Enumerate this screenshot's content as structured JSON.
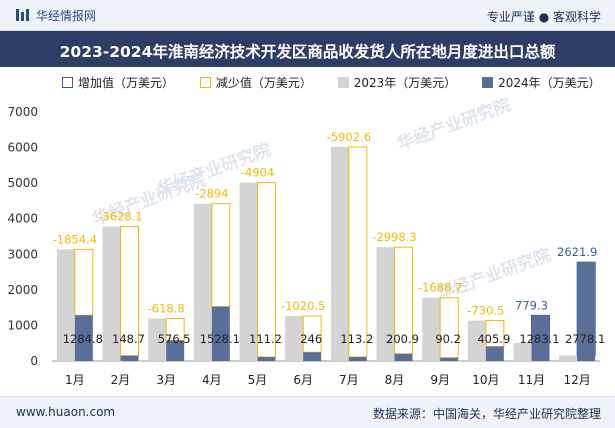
{
  "header": {
    "brand": "华经情报网",
    "slogan": "专业严谨 ● 客观科学"
  },
  "title": "2023-2024年淮南经济技术开发区商品收发货人所在地月度进出口总额",
  "legend": {
    "increase": "增加值（万美元）",
    "decrease": "减少值（万美元）",
    "y2023": "2023年（万美元）",
    "y2024": "2024年（万美元）"
  },
  "watermark": "华经产业研究院",
  "colors": {
    "bar2023": "#d4d4d4",
    "bar2024": "#5a6e9a",
    "increase": "#3a5a9c",
    "decrease": "#f5b800",
    "title_bg": "#2c3e66"
  },
  "footer": {
    "site": "www.huaon.com",
    "source": "数据来源：中国海关，华经产业研究院整理"
  },
  "chart_data": {
    "type": "bar",
    "categories": [
      "1月",
      "2月",
      "3月",
      "4月",
      "5月",
      "6月",
      "7月",
      "8月",
      "9月",
      "10月",
      "11月",
      "12月"
    ],
    "series": [
      {
        "name": "2023年（万美元）",
        "values": [
          3139.2,
          3776.8,
          1195.3,
          4422.1,
          5015.2,
          1266.5,
          6015.8,
          3199.2,
          1778.9,
          1136.4,
          503.8,
          156.2
        ]
      },
      {
        "name": "2024年（万美元）",
        "values": [
          1284.8,
          148.7,
          576.5,
          1528.1,
          111.2,
          246,
          113.2,
          200.9,
          90.2,
          405.9,
          1283.1,
          2778.1
        ]
      }
    ],
    "diff_labels": [
      "-1854.4",
      "-3628.1",
      "-618.8",
      "-2894",
      "-4904",
      "-1020.5",
      "-5902.6",
      "-2998.3",
      "-1688.7",
      "-730.5",
      "779.3",
      "2621.9"
    ],
    "ylim": [
      0,
      7000
    ],
    "yticks": [
      0,
      1000,
      2000,
      3000,
      4000,
      5000,
      6000,
      7000
    ],
    "grid": false,
    "legend_position": "top"
  }
}
